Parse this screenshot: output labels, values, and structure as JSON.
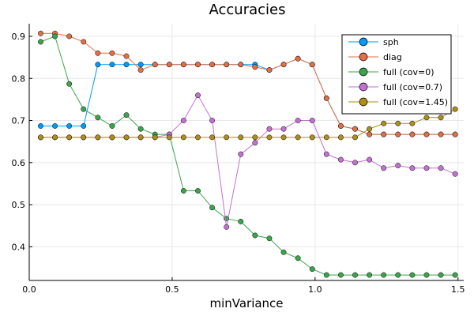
{
  "chart_data": {
    "type": "line",
    "title": "Accuracies",
    "xlabel": "minVariance",
    "ylabel": "",
    "xlim": [
      0.0,
      1.52
    ],
    "ylim": [
      0.32,
      0.93
    ],
    "xticks": [
      {
        "value": 0.0,
        "label": "0.0"
      },
      {
        "value": 0.5,
        "label": "0.5"
      },
      {
        "value": 1.0,
        "label": "1.0"
      },
      {
        "value": 1.5,
        "label": "1.5"
      }
    ],
    "yticks": [
      {
        "value": 0.4,
        "label": "0.4"
      },
      {
        "value": 0.5,
        "label": "0.5"
      },
      {
        "value": 0.6,
        "label": "0.6"
      },
      {
        "value": 0.7,
        "label": "0.7"
      },
      {
        "value": 0.8,
        "label": "0.8"
      },
      {
        "value": 0.9,
        "label": "0.9"
      }
    ],
    "grid": true,
    "legend_position": "top-right",
    "x": [
      0.04,
      0.09,
      0.14,
      0.19,
      0.24,
      0.29,
      0.34,
      0.39,
      0.44,
      0.49,
      0.54,
      0.59,
      0.64,
      0.69,
      0.74,
      0.79,
      0.84,
      0.89,
      0.94,
      0.99,
      1.04,
      1.09,
      1.14,
      1.19,
      1.24,
      1.29,
      1.34,
      1.39,
      1.44,
      1.49
    ],
    "series": [
      {
        "name": "sph",
        "color": "#009af9",
        "values": [
          0.687,
          0.687,
          0.687,
          0.687,
          0.833,
          0.833,
          0.833,
          0.833,
          0.833,
          0.833,
          0.833,
          0.833,
          0.833,
          0.833,
          0.833,
          0.833,
          0.82,
          0.833,
          0.847,
          0.833,
          0.753,
          0.687,
          0.68,
          0.667,
          0.667,
          0.667,
          0.667,
          0.667,
          0.667,
          0.667
        ]
      },
      {
        "name": "diag",
        "color": "#e26f46",
        "values": [
          0.907,
          0.907,
          0.9,
          0.887,
          0.86,
          0.86,
          0.853,
          0.82,
          0.833,
          0.833,
          0.833,
          0.833,
          0.833,
          0.833,
          0.833,
          0.827,
          0.82,
          0.833,
          0.847,
          0.833,
          0.753,
          0.687,
          0.68,
          0.667,
          0.667,
          0.667,
          0.667,
          0.667,
          0.667,
          0.667
        ]
      },
      {
        "name": "full (cov=0)",
        "color": "#3da44d",
        "values": [
          0.887,
          0.9,
          0.787,
          0.727,
          0.707,
          0.687,
          0.713,
          0.68,
          0.667,
          0.667,
          0.533,
          0.533,
          0.493,
          0.467,
          0.46,
          0.427,
          0.42,
          0.387,
          0.373,
          0.347,
          0.333,
          0.333,
          0.333,
          0.333,
          0.333,
          0.333,
          0.333,
          0.333,
          0.333,
          0.333
        ]
      },
      {
        "name": "full (cov=0.7)",
        "color": "#c271d2",
        "values": [
          0.66,
          0.66,
          0.66,
          0.66,
          0.66,
          0.66,
          0.66,
          0.66,
          0.66,
          0.667,
          0.7,
          0.76,
          0.7,
          0.447,
          0.62,
          0.647,
          0.68,
          0.68,
          0.7,
          0.7,
          0.62,
          0.607,
          0.6,
          0.607,
          0.587,
          0.593,
          0.587,
          0.587,
          0.587,
          0.573
        ]
      },
      {
        "name": "full (cov=1.45)",
        "color": "#ac8e18",
        "values": [
          0.66,
          0.66,
          0.66,
          0.66,
          0.66,
          0.66,
          0.66,
          0.66,
          0.66,
          0.66,
          0.66,
          0.66,
          0.66,
          0.66,
          0.66,
          0.66,
          0.66,
          0.66,
          0.66,
          0.66,
          0.66,
          0.66,
          0.66,
          0.68,
          0.693,
          0.693,
          0.693,
          0.707,
          0.707,
          0.727
        ]
      }
    ]
  }
}
